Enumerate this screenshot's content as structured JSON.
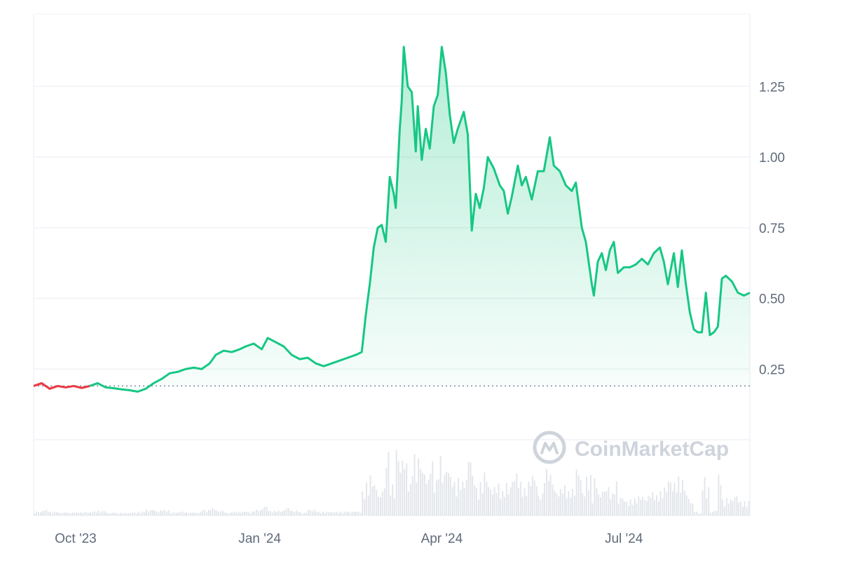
{
  "chart_data": {
    "type": "area",
    "watermark": "CoinMarketCap",
    "baseline": 0.19,
    "y_ticks": [
      {
        "value": 0.25,
        "label": "0.25"
      },
      {
        "value": 0.5,
        "label": "0.50"
      },
      {
        "value": 0.75,
        "label": "0.75"
      },
      {
        "value": 1.0,
        "label": "1.00"
      },
      {
        "value": 1.25,
        "label": "1.25"
      }
    ],
    "x_ticks": [
      {
        "date": "2023-10-01",
        "label": "Oct '23"
      },
      {
        "date": "2024-01-01",
        "label": "Jan '24"
      },
      {
        "date": "2024-04-01",
        "label": "Apr '24"
      },
      {
        "date": "2024-07-01",
        "label": "Jul '24"
      }
    ],
    "x_range": [
      "2023-09-10",
      "2024-09-02"
    ],
    "y_range": [
      0,
      1.5
    ],
    "colors": {
      "up": "#16c784",
      "down": "#ea3943",
      "grid": "#eff2f5",
      "baseline": "#808a9d",
      "volume": "#e3e6eb"
    },
    "series": [
      {
        "values": [
          [
            "2023-09-10",
            0.19
          ],
          [
            "2023-09-14",
            0.2
          ],
          [
            "2023-09-18",
            0.18
          ],
          [
            "2023-09-22",
            0.19
          ],
          [
            "2023-09-26",
            0.185
          ],
          [
            "2023-09-30",
            0.19
          ],
          [
            "2023-10-04",
            0.183
          ],
          [
            "2023-10-08",
            0.19
          ],
          [
            "2023-10-12",
            0.2
          ],
          [
            "2023-10-16",
            0.185
          ],
          [
            "2023-10-20",
            0.182
          ],
          [
            "2023-10-24",
            0.178
          ],
          [
            "2023-10-28",
            0.175
          ],
          [
            "2023-11-01",
            0.17
          ],
          [
            "2023-11-05",
            0.18
          ],
          [
            "2023-11-09",
            0.2
          ],
          [
            "2023-11-13",
            0.215
          ],
          [
            "2023-11-17",
            0.235
          ],
          [
            "2023-11-21",
            0.24
          ],
          [
            "2023-11-25",
            0.25
          ],
          [
            "2023-11-29",
            0.255
          ],
          [
            "2023-12-03",
            0.25
          ],
          [
            "2023-12-07",
            0.27
          ],
          [
            "2023-12-10",
            0.3
          ],
          [
            "2023-12-14",
            0.315
          ],
          [
            "2023-12-18",
            0.31
          ],
          [
            "2023-12-22",
            0.32
          ],
          [
            "2023-12-25",
            0.33
          ],
          [
            "2023-12-29",
            0.34
          ],
          [
            "2024-01-02",
            0.32
          ],
          [
            "2024-01-05",
            0.36
          ],
          [
            "2024-01-09",
            0.345
          ],
          [
            "2024-01-13",
            0.33
          ],
          [
            "2024-01-17",
            0.3
          ],
          [
            "2024-01-21",
            0.285
          ],
          [
            "2024-01-25",
            0.29
          ],
          [
            "2024-01-29",
            0.27
          ],
          [
            "2024-02-02",
            0.26
          ],
          [
            "2024-02-06",
            0.27
          ],
          [
            "2024-02-10",
            0.28
          ],
          [
            "2024-02-14",
            0.29
          ],
          [
            "2024-02-18",
            0.3
          ],
          [
            "2024-02-21",
            0.31
          ],
          [
            "2024-02-23",
            0.44
          ],
          [
            "2024-02-25",
            0.55
          ],
          [
            "2024-02-27",
            0.68
          ],
          [
            "2024-02-29",
            0.75
          ],
          [
            "2024-03-02",
            0.76
          ],
          [
            "2024-03-04",
            0.7
          ],
          [
            "2024-03-06",
            0.93
          ],
          [
            "2024-03-08",
            0.87
          ],
          [
            "2024-03-09",
            0.82
          ],
          [
            "2024-03-11",
            1.1
          ],
          [
            "2024-03-12",
            1.2
          ],
          [
            "2024-03-13",
            1.39
          ],
          [
            "2024-03-15",
            1.25
          ],
          [
            "2024-03-17",
            1.23
          ],
          [
            "2024-03-19",
            1.02
          ],
          [
            "2024-03-20",
            1.18
          ],
          [
            "2024-03-22",
            0.99
          ],
          [
            "2024-03-24",
            1.1
          ],
          [
            "2024-03-26",
            1.03
          ],
          [
            "2024-03-28",
            1.18
          ],
          [
            "2024-03-30",
            1.22
          ],
          [
            "2024-04-01",
            1.39
          ],
          [
            "2024-04-03",
            1.3
          ],
          [
            "2024-04-05",
            1.15
          ],
          [
            "2024-04-07",
            1.05
          ],
          [
            "2024-04-09",
            1.1
          ],
          [
            "2024-04-12",
            1.16
          ],
          [
            "2024-04-14",
            1.08
          ],
          [
            "2024-04-16",
            0.74
          ],
          [
            "2024-04-18",
            0.87
          ],
          [
            "2024-04-20",
            0.82
          ],
          [
            "2024-04-22",
            0.89
          ],
          [
            "2024-04-24",
            1.0
          ],
          [
            "2024-04-27",
            0.96
          ],
          [
            "2024-04-30",
            0.9
          ],
          [
            "2024-05-02",
            0.88
          ],
          [
            "2024-05-04",
            0.8
          ],
          [
            "2024-05-06",
            0.86
          ],
          [
            "2024-05-09",
            0.97
          ],
          [
            "2024-05-11",
            0.9
          ],
          [
            "2024-05-13",
            0.93
          ],
          [
            "2024-05-16",
            0.85
          ],
          [
            "2024-05-19",
            0.95
          ],
          [
            "2024-05-22",
            0.95
          ],
          [
            "2024-05-25",
            1.07
          ],
          [
            "2024-05-27",
            0.97
          ],
          [
            "2024-05-30",
            0.95
          ],
          [
            "2024-06-02",
            0.9
          ],
          [
            "2024-06-05",
            0.88
          ],
          [
            "2024-06-07",
            0.91
          ],
          [
            "2024-06-10",
            0.75
          ],
          [
            "2024-06-12",
            0.7
          ],
          [
            "2024-06-15",
            0.55
          ],
          [
            "2024-06-16",
            0.51
          ],
          [
            "2024-06-18",
            0.63
          ],
          [
            "2024-06-20",
            0.66
          ],
          [
            "2024-06-22",
            0.6
          ],
          [
            "2024-06-24",
            0.67
          ],
          [
            "2024-06-26",
            0.7
          ],
          [
            "2024-06-28",
            0.59
          ],
          [
            "2024-07-01",
            0.61
          ],
          [
            "2024-07-04",
            0.61
          ],
          [
            "2024-07-07",
            0.62
          ],
          [
            "2024-07-10",
            0.64
          ],
          [
            "2024-07-13",
            0.62
          ],
          [
            "2024-07-16",
            0.66
          ],
          [
            "2024-07-19",
            0.68
          ],
          [
            "2024-07-21",
            0.63
          ],
          [
            "2024-07-23",
            0.55
          ],
          [
            "2024-07-26",
            0.66
          ],
          [
            "2024-07-28",
            0.54
          ],
          [
            "2024-07-30",
            0.67
          ],
          [
            "2024-08-01",
            0.55
          ],
          [
            "2024-08-03",
            0.45
          ],
          [
            "2024-08-05",
            0.39
          ],
          [
            "2024-08-07",
            0.38
          ],
          [
            "2024-08-09",
            0.38
          ],
          [
            "2024-08-11",
            0.52
          ],
          [
            "2024-08-13",
            0.37
          ],
          [
            "2024-08-15",
            0.38
          ],
          [
            "2024-08-17",
            0.4
          ],
          [
            "2024-08-19",
            0.57
          ],
          [
            "2024-08-21",
            0.58
          ],
          [
            "2024-08-24",
            0.56
          ],
          [
            "2024-08-27",
            0.52
          ],
          [
            "2024-08-30",
            0.51
          ],
          [
            "2024-09-02",
            0.52
          ]
        ]
      }
    ]
  }
}
